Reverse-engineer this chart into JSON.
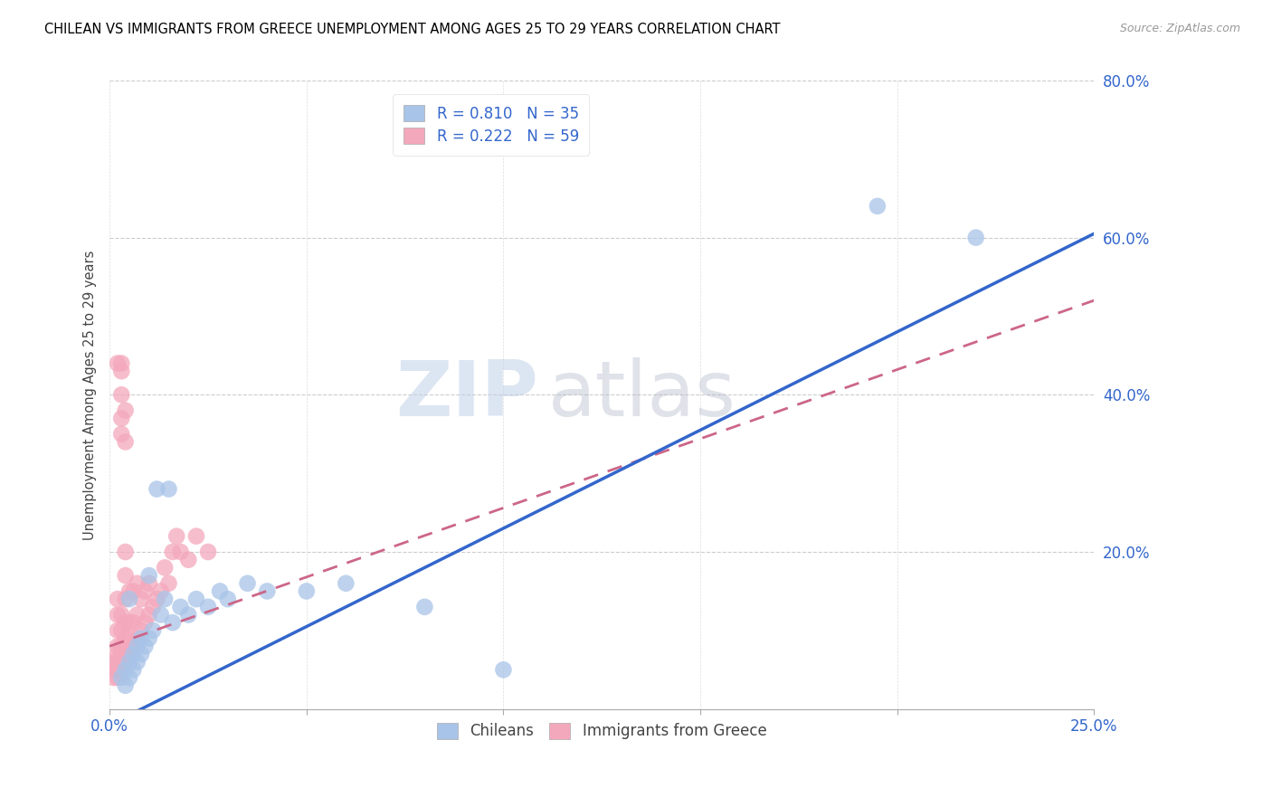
{
  "title": "CHILEAN VS IMMIGRANTS FROM GREECE UNEMPLOYMENT AMONG AGES 25 TO 29 YEARS CORRELATION CHART",
  "source": "Source: ZipAtlas.com",
  "ylabel": "Unemployment Among Ages 25 to 29 years",
  "xlim": [
    0.0,
    0.25
  ],
  "ylim": [
    0.0,
    0.8
  ],
  "xticks": [
    0.0,
    0.05,
    0.1,
    0.15,
    0.2,
    0.25
  ],
  "yticks": [
    0.0,
    0.2,
    0.4,
    0.6,
    0.8
  ],
  "ytick_labels": [
    "",
    "20.0%",
    "40.0%",
    "60.0%",
    "80.0%"
  ],
  "xtick_labels": [
    "0.0%",
    "",
    "",
    "",
    "",
    "25.0%"
  ],
  "watermark_zip": "ZIP",
  "watermark_atlas": "atlas",
  "legend_R1": "R = 0.810",
  "legend_N1": "N = 35",
  "legend_R2": "R = 0.222",
  "legend_N2": "N = 59",
  "color_chileans": "#a8c4e8",
  "color_greece": "#f4a8bc",
  "color_line_chileans": "#3366cc",
  "color_line_greece": "#cc6688",
  "blue_line_x": [
    0.0,
    0.25
  ],
  "blue_line_y": [
    -0.02,
    0.605
  ],
  "pink_line_x": [
    0.0,
    0.25
  ],
  "pink_line_y": [
    0.08,
    0.52
  ],
  "chileans_x": [
    0.003,
    0.004,
    0.004,
    0.005,
    0.005,
    0.005,
    0.006,
    0.006,
    0.007,
    0.007,
    0.008,
    0.008,
    0.009,
    0.01,
    0.01,
    0.011,
    0.012,
    0.013,
    0.014,
    0.015,
    0.016,
    0.018,
    0.02,
    0.022,
    0.025,
    0.028,
    0.03,
    0.035,
    0.04,
    0.05,
    0.06,
    0.08,
    0.1,
    0.195,
    0.22
  ],
  "chileans_y": [
    0.04,
    0.03,
    0.05,
    0.04,
    0.06,
    0.14,
    0.05,
    0.07,
    0.06,
    0.08,
    0.07,
    0.09,
    0.08,
    0.09,
    0.17,
    0.1,
    0.28,
    0.12,
    0.14,
    0.28,
    0.11,
    0.13,
    0.12,
    0.14,
    0.13,
    0.15,
    0.14,
    0.16,
    0.15,
    0.15,
    0.16,
    0.13,
    0.05,
    0.64,
    0.6
  ],
  "greece_x": [
    0.001,
    0.001,
    0.001,
    0.002,
    0.002,
    0.002,
    0.002,
    0.002,
    0.002,
    0.002,
    0.002,
    0.003,
    0.003,
    0.003,
    0.003,
    0.003,
    0.003,
    0.004,
    0.004,
    0.004,
    0.004,
    0.004,
    0.004,
    0.004,
    0.005,
    0.005,
    0.005,
    0.005,
    0.006,
    0.006,
    0.006,
    0.007,
    0.007,
    0.007,
    0.008,
    0.008,
    0.009,
    0.009,
    0.01,
    0.01,
    0.011,
    0.012,
    0.013,
    0.014,
    0.015,
    0.016,
    0.017,
    0.018,
    0.02,
    0.022,
    0.025,
    0.002,
    0.003,
    0.003,
    0.003,
    0.003,
    0.003,
    0.004,
    0.004
  ],
  "greece_y": [
    0.04,
    0.05,
    0.06,
    0.04,
    0.05,
    0.06,
    0.07,
    0.08,
    0.1,
    0.12,
    0.14,
    0.05,
    0.06,
    0.07,
    0.08,
    0.1,
    0.12,
    0.06,
    0.07,
    0.09,
    0.11,
    0.14,
    0.17,
    0.2,
    0.07,
    0.09,
    0.11,
    0.15,
    0.08,
    0.11,
    0.15,
    0.09,
    0.12,
    0.16,
    0.1,
    0.14,
    0.11,
    0.15,
    0.12,
    0.16,
    0.13,
    0.14,
    0.15,
    0.18,
    0.16,
    0.2,
    0.22,
    0.2,
    0.19,
    0.22,
    0.2,
    0.44,
    0.35,
    0.37,
    0.4,
    0.43,
    0.44,
    0.34,
    0.38
  ]
}
